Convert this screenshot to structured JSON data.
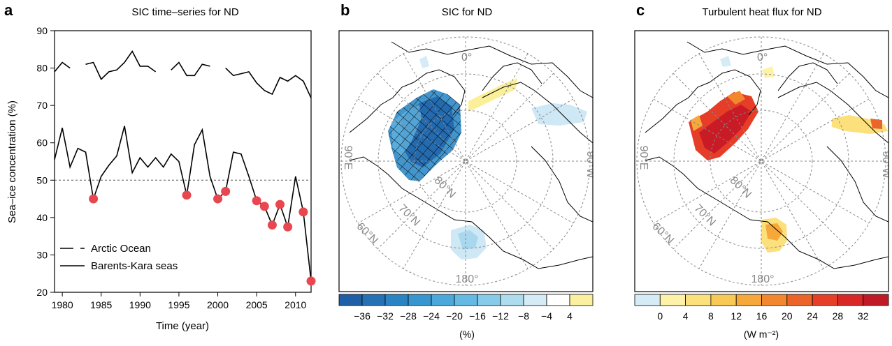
{
  "colors": {
    "series_line": "#000000",
    "highlight_dot": "#e8474f",
    "threshold_line": "#555555",
    "map_grid": "#888888",
    "map_labels": "#888888"
  },
  "chart_data": [
    {
      "type": "line",
      "panel": "a",
      "title": "SIC time–series for ND",
      "xlabel": "Time (year)",
      "ylabel": "Sea–ice concentration (%)",
      "xlim": [
        1979,
        2012
      ],
      "ylim": [
        20,
        90
      ],
      "xticks": [
        "1980",
        "1985",
        "1990",
        "1995",
        "2000",
        "2005",
        "2010"
      ],
      "yticks": [
        "20",
        "30",
        "40",
        "50",
        "60",
        "70",
        "80",
        "90"
      ],
      "threshold": 50,
      "grid": false,
      "legend_position": "bottom-left",
      "x": [
        1979,
        1980,
        1981,
        1982,
        1983,
        1984,
        1985,
        1986,
        1987,
        1988,
        1989,
        1990,
        1991,
        1992,
        1993,
        1994,
        1995,
        1996,
        1997,
        1998,
        1999,
        2000,
        2001,
        2002,
        2003,
        2004,
        2005,
        2006,
        2007,
        2008,
        2009,
        2010,
        2011,
        2012
      ],
      "series": [
        {
          "name": "Arctic Ocean",
          "style": "dashed",
          "values": [
            79,
            81.5,
            80,
            null,
            81,
            81.5,
            77,
            79,
            79.5,
            81.5,
            84.5,
            80.5,
            80.5,
            79,
            null,
            79.5,
            81.5,
            78,
            78,
            81,
            80.5,
            null,
            80,
            78,
            78.5,
            79,
            76,
            74,
            73,
            77.5,
            76.5,
            78,
            76.5,
            72
          ]
        },
        {
          "name": "Barents-Kara seas",
          "style": "solid",
          "values": [
            55.5,
            64,
            53.5,
            58.5,
            57.5,
            45,
            51,
            54,
            56.5,
            64.5,
            52,
            56,
            53.5,
            56,
            53.5,
            57,
            55,
            46,
            59.5,
            63.5,
            51,
            45,
            47,
            57.5,
            57,
            51,
            44.5,
            43,
            38,
            43.5,
            37.5,
            51,
            41.5,
            23
          ]
        }
      ],
      "highlighted_points": {
        "x": [
          1984,
          1996,
          2000,
          2001,
          2005,
          2006,
          2007,
          2008,
          2009,
          2011,
          2012
        ],
        "y": [
          45,
          46,
          45,
          47,
          44.5,
          43,
          38,
          43.5,
          37.5,
          41.5,
          23
        ]
      }
    },
    {
      "type": "heatmap",
      "panel": "b",
      "title": "SIC for ND",
      "colorbar_ticks": [
        "−36",
        "−32",
        "−28",
        "−24",
        "−20",
        "−16",
        "−12",
        "−8",
        "−4",
        "4"
      ],
      "colorbar_unit": "(%)",
      "colorbar_colors": [
        "#1f5fa7",
        "#2471b5",
        "#2a84c4",
        "#3796cf",
        "#4aa8da",
        "#64bae2",
        "#86cbe9",
        "#addcef",
        "#d5ecf6",
        "#ffffff",
        "#fbf0a0"
      ]
    },
    {
      "type": "heatmap",
      "panel": "c",
      "title": "Turbulent heat flux for ND",
      "colorbar_ticks": [
        "0",
        "4",
        "8",
        "12",
        "16",
        "20",
        "24",
        "28",
        "32"
      ],
      "colorbar_unit": "(W m⁻²)",
      "colorbar_colors": [
        "#d5ecf6",
        "#fdf2a8",
        "#fbe07c",
        "#f9c955",
        "#f6a93a",
        "#f2872e",
        "#ec6428",
        "#e54027",
        "#d92728",
        "#c01a26"
      ]
    }
  ],
  "maps": {
    "lat_labels": [
      "80°N",
      "70°N",
      "60°N"
    ],
    "lon_labels": {
      "top": "0°",
      "left": "90°E",
      "right": "90°W",
      "bottom": "180°"
    }
  }
}
